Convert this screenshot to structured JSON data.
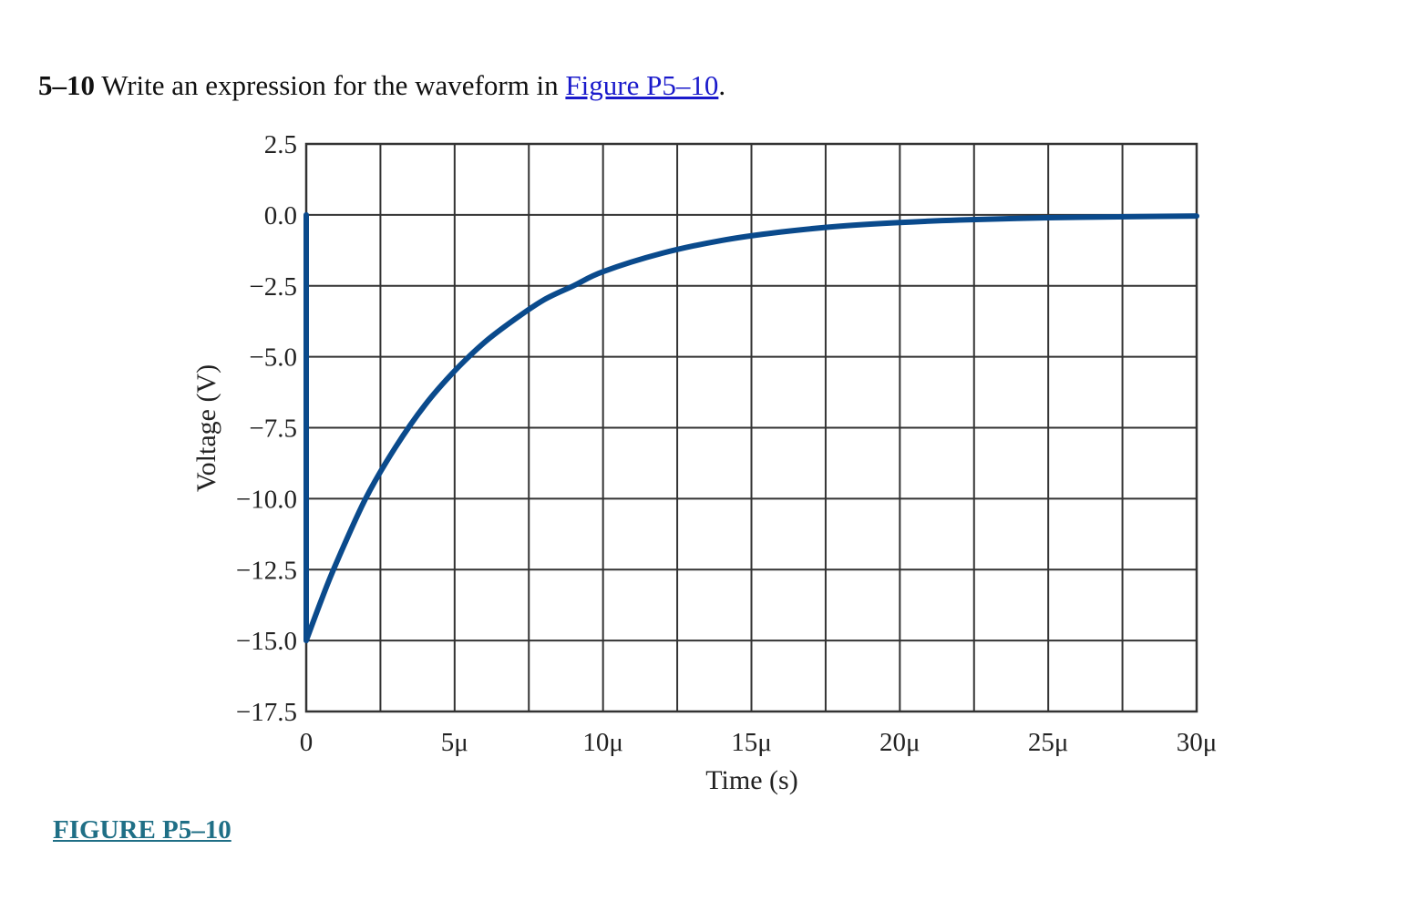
{
  "problem": {
    "number": "5–10",
    "text_before": "Write an expression for the waveform in",
    "link_text": "Figure P5–10",
    "text_after": "."
  },
  "figure_label": "FIGURE P5–10",
  "colors": {
    "curve": "#0a4a8c",
    "grid": "#333333",
    "link": "#1a1acb",
    "figure_label": "#1f6f86"
  },
  "chart_data": {
    "type": "line",
    "xlabel": "Time (s)",
    "ylabel": "Voltage (V)",
    "xlim": [
      0,
      30
    ],
    "ylim": [
      -17.5,
      2.5
    ],
    "x_unit": "µs",
    "x_ticks": [
      0,
      5,
      10,
      15,
      20,
      25,
      30
    ],
    "x_tick_labels": [
      "0",
      "5μ",
      "10μ",
      "15μ",
      "20μ",
      "25μ",
      "30μ"
    ],
    "x_grid_step": 2.5,
    "y_ticks": [
      2.5,
      0.0,
      -2.5,
      -5.0,
      -7.5,
      -10.0,
      -12.5,
      -15.0,
      -17.5
    ],
    "y_tick_labels": [
      "2.5",
      "0.0",
      "−2.5",
      "−5.0",
      "−7.5",
      "−10.0",
      "−12.5",
      "−15.0",
      "−17.5"
    ],
    "grid": true,
    "series": [
      {
        "x": [
          0,
          0,
          0.5,
          1,
          2,
          3,
          4,
          5,
          6,
          7,
          8,
          9,
          10,
          12,
          14,
          16,
          18,
          20,
          22,
          25,
          28,
          30
        ],
        "y": [
          0,
          -15,
          -13.6,
          -12.3,
          -10.0,
          -8.2,
          -6.7,
          -5.5,
          -4.5,
          -3.7,
          -3.0,
          -2.5,
          -2.0,
          -1.35,
          -0.9,
          -0.6,
          -0.4,
          -0.27,
          -0.18,
          -0.1,
          -0.06,
          -0.04
        ]
      }
    ]
  }
}
